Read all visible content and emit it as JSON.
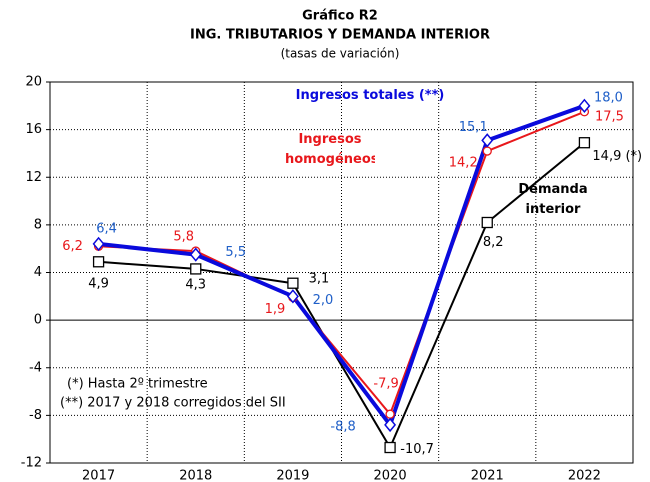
{
  "chart_data": {
    "type": "line",
    "title": "Gráfico  R2",
    "subtitle": "ING. TRIBUTARIOS Y DEMANDA INTERIOR",
    "note": "(tasas de variación)",
    "categories": [
      "2017",
      "2018",
      "2019",
      "2020",
      "2021",
      "2022"
    ],
    "series": [
      {
        "name": "Demanda interior",
        "color": "#000000",
        "marker": "square",
        "values": [
          4.9,
          4.3,
          3.1,
          -10.7,
          8.2,
          14.9
        ],
        "value_labels": [
          "4,9",
          "4,3",
          "3,1",
          "-10,7",
          "8,2",
          "14,9 (*)"
        ]
      },
      {
        "name": "Ingresos homogéneos",
        "color": "#e8171b",
        "marker": "circle",
        "values": [
          6.2,
          5.8,
          1.9,
          -7.9,
          14.2,
          17.5
        ],
        "value_labels": [
          "6,2",
          "5,8",
          "1,9",
          "-7,9",
          "14,2",
          "17,5"
        ]
      },
      {
        "name": "Ingresos totales (**)",
        "color": "#0a0adc",
        "marker": "diamond",
        "values": [
          6.4,
          5.5,
          2.0,
          -8.8,
          15.1,
          18.0
        ],
        "value_labels": [
          "6,4",
          "5,5",
          "2,0",
          "-8,8",
          "15,1",
          "18,0"
        ]
      }
    ],
    "ylim": [
      -12,
      20
    ],
    "yticks": [
      -12,
      -8,
      -4,
      0,
      4,
      8,
      12,
      16,
      20
    ],
    "grid": true,
    "footnotes": [
      "(*) Hasta 2º  trimestre",
      "(**) 2017 y 2018 corregidos del SII"
    ]
  }
}
